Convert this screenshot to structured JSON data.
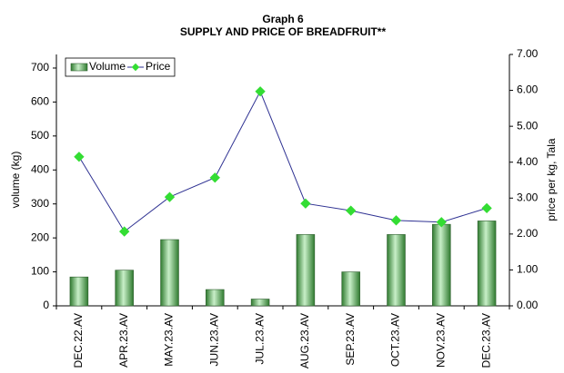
{
  "chart_data": {
    "type": "bar-line",
    "title": "Graph 6",
    "subtitle": "SUPPLY AND PRICE OF BREADFRUIT**",
    "y_label": "volume (kg)",
    "y2_label": "price per kg, Tala",
    "categories": [
      "DEC.22.AV",
      "APR.23.AV",
      "MAY.23.AV",
      "JUN.23.AV",
      "JUL.23.AV",
      "AUG.23.AV",
      "SEP.23.AV",
      "OCT.23.AV",
      "NOV.23.AV",
      "DEC.23.AV"
    ],
    "series": [
      {
        "name": "Volume",
        "color": "#6fbf6f",
        "type": "bar",
        "values": [
          85,
          105,
          195,
          48,
          20,
          210,
          100,
          210,
          240,
          250
        ]
      },
      {
        "name": "Price",
        "color": "#2e3192",
        "marker_color": "#33dd33",
        "type": "line",
        "axis": "y2",
        "values": [
          4.15,
          2.07,
          3.03,
          3.57,
          5.97,
          2.85,
          2.65,
          2.38,
          2.33,
          2.72
        ]
      }
    ],
    "ylim": [
      0,
      740
    ],
    "yticks": [
      0,
      100,
      200,
      300,
      400,
      500,
      600,
      700
    ],
    "y2lim": [
      0,
      7
    ],
    "y2ticks": [
      {
        "value": 0,
        "label": "0.00"
      },
      {
        "value": 1,
        "label": "1.00"
      },
      {
        "value": 2,
        "label": "2.00"
      },
      {
        "value": 3,
        "label": "3.00"
      },
      {
        "value": 4,
        "label": "4.00"
      },
      {
        "value": 5,
        "label": "5.00"
      },
      {
        "value": 6,
        "label": "6.00"
      },
      {
        "value": 7,
        "label": "7.00"
      }
    ],
    "legend": "top-left"
  }
}
